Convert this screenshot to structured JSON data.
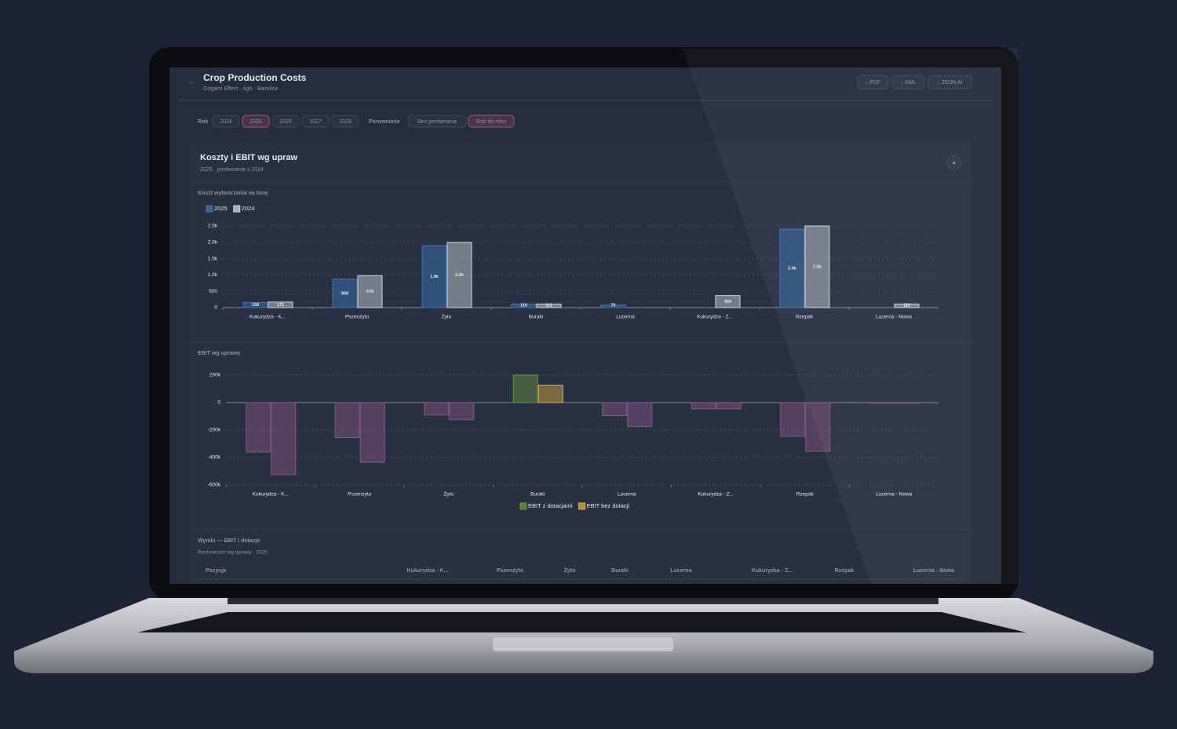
{
  "header": {
    "back": "←",
    "title": "Crop Production Costs",
    "subtitle": "Origami Effect · Agri · Baseline",
    "buttons": [
      "↓ PDF",
      "↓ XML",
      "↓ JSON AI"
    ]
  },
  "filters": {
    "year_label": "Rok",
    "years": [
      "2024",
      "2025",
      "2026",
      "2027",
      "2028"
    ],
    "active_year": 1,
    "compare_label": "Porownanie",
    "compare_options": [
      "Bez porównania",
      "Rok do roku"
    ],
    "active_compare": 1
  },
  "section": {
    "title": "Koszty i EBIT wg upraw",
    "subtitle": "2025 · porównanie z 2024",
    "toggle": "▲"
  },
  "chart_data": [
    {
      "type": "bar",
      "title": "Koszt wytworzenia na tonę",
      "categories": [
        "Kukurydza - K...",
        "Pszenżyto",
        "Żyto",
        "Buraki",
        "Lucerna",
        "Kukurydza - Z...",
        "Rzepak",
        "Lucerna - Nowa"
      ],
      "series": [
        {
          "name": "2025",
          "color": "#3a78b8",
          "values": [
            158,
            868,
            1900,
            110,
            76,
            null,
            2400,
            null
          ],
          "value_labels": [
            "158",
            "868",
            "1.9k",
            "110",
            "76",
            null,
            "2.4k",
            null
          ]
        },
        {
          "name": "2024",
          "color": "#d0d6e0",
          "values": [
            171,
            978,
            2000,
            111,
            null,
            369,
            2500,
            110
          ],
          "value_labels": [
            "171",
            "978",
            "2.0k",
            "111",
            null,
            "369",
            "2.5k",
            "110"
          ]
        }
      ],
      "ylim": [
        0,
        2500
      ],
      "yticks": [
        0,
        500,
        {
          "value": 1000,
          "label": "1.0k"
        },
        {
          "value": 1500,
          "label": "1.5k"
        },
        {
          "value": 2000,
          "label": "2.0k"
        },
        {
          "value": 2500,
          "label": "2.5k"
        }
      ],
      "grid": true,
      "legend": "top-left"
    },
    {
      "type": "bar",
      "title": "EBIT wg uprawy",
      "categories": [
        "Kukurydza - K...",
        "Pszenżyto",
        "Żyto",
        "Buraki",
        "Lucerna",
        "Kukurydza - Z...",
        "Rzepak",
        "Lucerna - Nowa"
      ],
      "series": [
        {
          "name": "EBIT z dotacjami",
          "color": "#6a9a40",
          "values": [
            -360000,
            -255000,
            -90000,
            200000,
            -95000,
            -45000,
            -245000,
            -5000
          ]
        },
        {
          "name": "EBIT bez dotacji",
          "color": "#e0b040",
          "values": [
            -525000,
            -435000,
            -125000,
            125000,
            -175000,
            -45000,
            -355000,
            -5000
          ]
        }
      ],
      "negative_color": "#8a5585",
      "ylim": [
        -600000,
        200000
      ],
      "yticks": [
        {
          "value": -600000,
          "label": "-600k"
        },
        {
          "value": -400000,
          "label": "-400k"
        },
        {
          "value": -200000,
          "label": "-200k"
        },
        0,
        {
          "value": 200000,
          "label": "200k"
        }
      ],
      "grid": true,
      "legend": "bottom"
    }
  ],
  "table": {
    "title": "Wyniki — EBIT i dotacje",
    "subtitle": "Rentowność wg uprawy · 2025",
    "columns": [
      "Pozycja",
      "Kukurydza - K...",
      "Pszenżyto",
      "Żyto",
      "Buraki",
      "Lucerna",
      "Kukurydza - Z...",
      "Rzepak",
      "Lucerna - Nowa"
    ]
  }
}
